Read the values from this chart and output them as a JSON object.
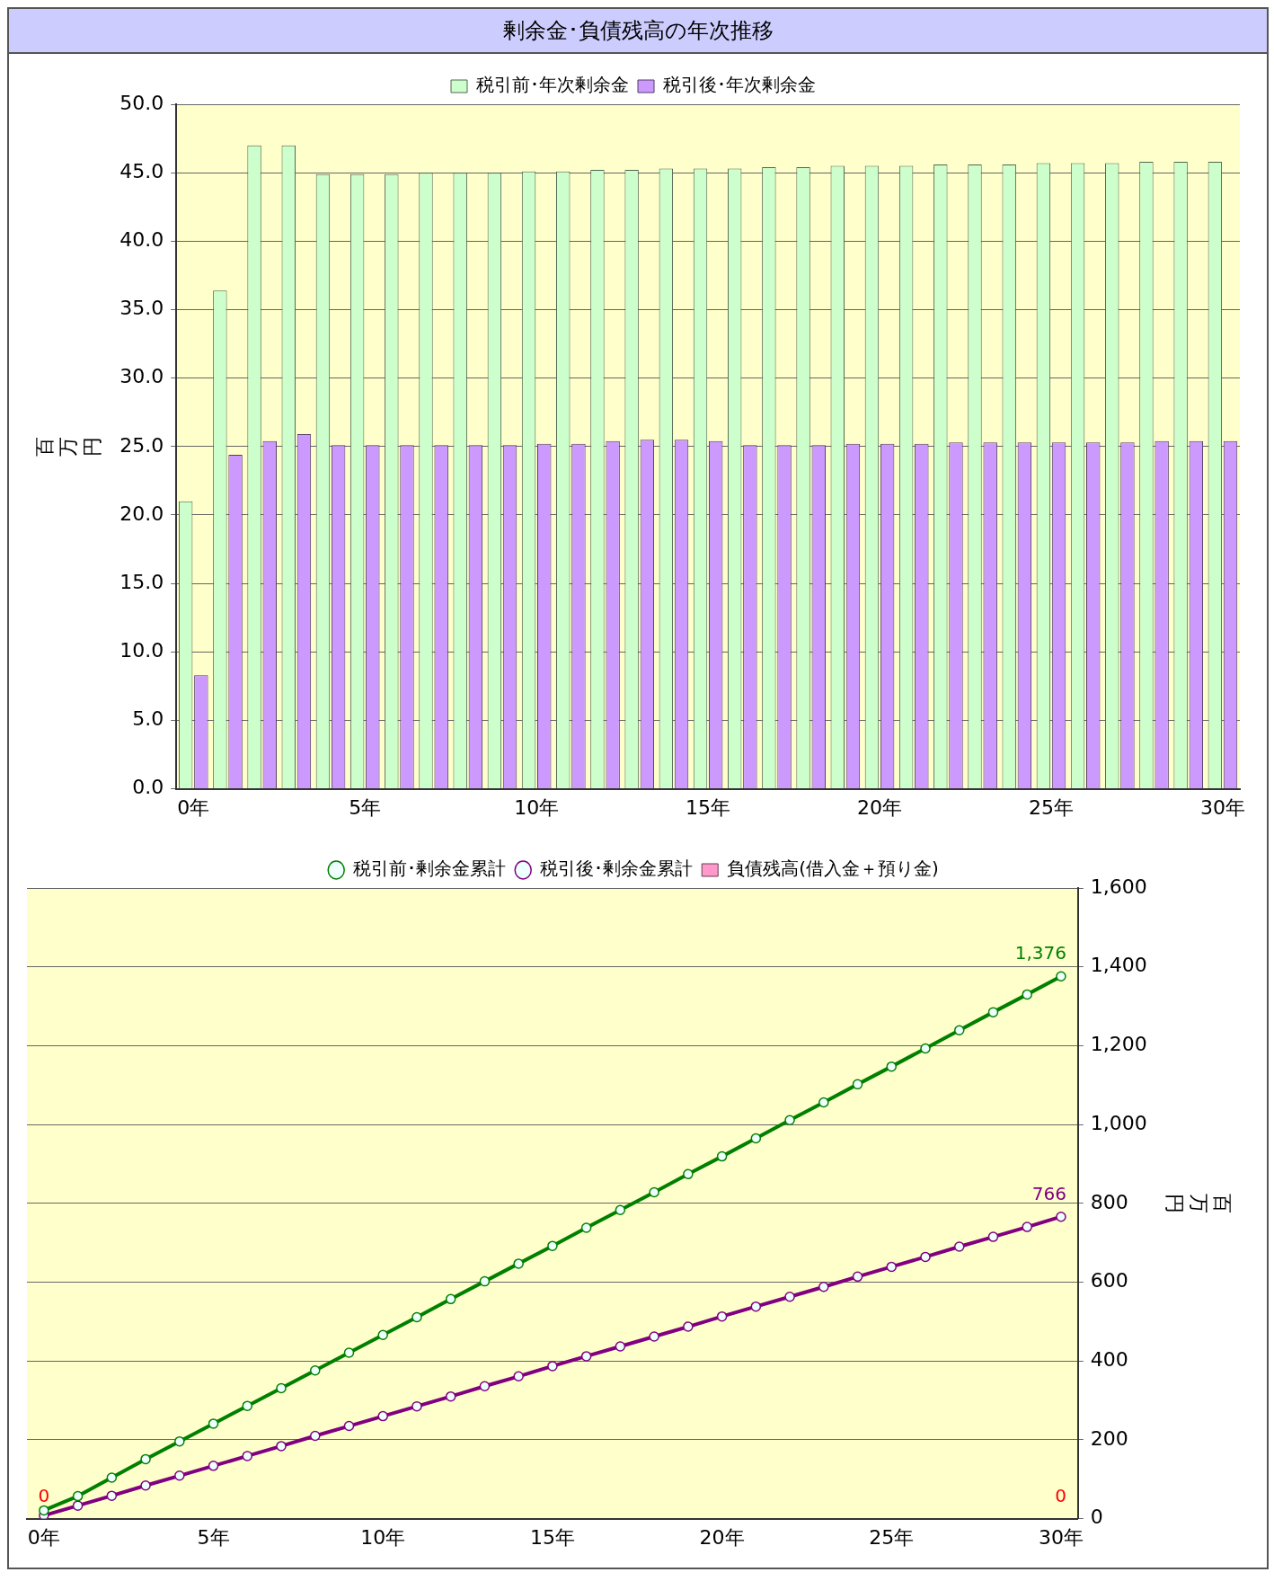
{
  "chart_data": [
    {
      "type": "bar",
      "title": "剰余金･負債残高の年次推移",
      "ylabel": "百万円",
      "categories": [
        "0年",
        null,
        null,
        null,
        null,
        "5年",
        null,
        null,
        null,
        null,
        "10年",
        null,
        null,
        null,
        null,
        "15年",
        null,
        null,
        null,
        null,
        "20年",
        null,
        null,
        null,
        null,
        "25年",
        null,
        null,
        null,
        null,
        "30年"
      ],
      "series": [
        {
          "name": "税引前･年次剰余金",
          "color": "#ccffcc",
          "values": [
            21.0,
            36.4,
            47.0,
            47.0,
            44.9,
            44.9,
            44.9,
            45.0,
            45.0,
            45.0,
            45.1,
            45.1,
            45.2,
            45.2,
            45.3,
            45.3,
            45.3,
            45.4,
            45.4,
            45.5,
            45.5,
            45.5,
            45.6,
            45.6,
            45.6,
            45.7,
            45.7,
            45.7,
            45.8,
            45.8,
            45.8
          ]
        },
        {
          "name": "税引後･年次剰余金",
          "color": "#cc99ff",
          "values": [
            8.3,
            24.4,
            25.4,
            25.9,
            25.1,
            25.1,
            25.1,
            25.1,
            25.1,
            25.1,
            25.2,
            25.2,
            25.4,
            25.5,
            25.5,
            25.4,
            25.1,
            25.1,
            25.1,
            25.2,
            25.2,
            25.2,
            25.3,
            25.3,
            25.3,
            25.3,
            25.3,
            25.3,
            25.4,
            25.4,
            25.4
          ]
        }
      ],
      "ylim": [
        0,
        50
      ],
      "yticks": [
        {
          "value": 0,
          "label": "0.0"
        },
        {
          "value": 5,
          "label": "5.0"
        },
        {
          "value": 10,
          "label": "10.0"
        },
        {
          "value": 15,
          "label": "15.0"
        },
        {
          "value": 20,
          "label": "20.0"
        },
        {
          "value": 25,
          "label": "25.0"
        },
        {
          "value": 30,
          "label": "30.0"
        },
        {
          "value": 35,
          "label": "35.0"
        },
        {
          "value": 40,
          "label": "40.0"
        },
        {
          "value": 45,
          "label": "45.0"
        },
        {
          "value": 50,
          "label": "50.0"
        }
      ],
      "grid": "y",
      "legend": "top"
    },
    {
      "type": "line",
      "y2label": "百万円",
      "marker": "circle",
      "categories": [
        "0年",
        null,
        null,
        null,
        null,
        "5年",
        null,
        null,
        null,
        null,
        "10年",
        null,
        null,
        null,
        null,
        "15年",
        null,
        null,
        null,
        null,
        "20年",
        null,
        null,
        null,
        null,
        "25年",
        null,
        null,
        null,
        null,
        "30年"
      ],
      "series": [
        {
          "name": "負債残高(借入金＋預り金)",
          "type": "bar",
          "axis": "y2",
          "color": "#ff99cc",
          "values": [
            0,
            0,
            0,
            0,
            0,
            0,
            0,
            0,
            0,
            0,
            0,
            0,
            0,
            0,
            0,
            0,
            0,
            0,
            0,
            0,
            0,
            0,
            0,
            0,
            0,
            0,
            0,
            0,
            0,
            0,
            0
          ],
          "value_labels": [
            "0",
            null,
            null,
            null,
            null,
            null,
            null,
            null,
            null,
            null,
            null,
            null,
            null,
            null,
            null,
            null,
            null,
            null,
            null,
            null,
            null,
            null,
            null,
            null,
            null,
            null,
            null,
            null,
            null,
            null,
            "0"
          ]
        },
        {
          "name": "税引前･剰余金累計",
          "axis": "y2",
          "color": "#008000",
          "values": [
            21,
            57,
            104,
            151,
            196,
            241,
            286,
            331,
            376,
            421,
            466,
            511,
            557,
            602,
            647,
            692,
            738,
            783,
            828,
            874,
            919,
            965,
            1011,
            1056,
            1102,
            1147,
            1193,
            1239,
            1285,
            1330,
            1376
          ],
          "value_labels": [
            null,
            null,
            null,
            null,
            null,
            null,
            null,
            null,
            null,
            null,
            null,
            null,
            null,
            null,
            null,
            null,
            null,
            null,
            null,
            null,
            null,
            null,
            null,
            null,
            null,
            null,
            null,
            null,
            null,
            null,
            "1,376"
          ]
        },
        {
          "name": "税引後･剰余金累計",
          "axis": "y2",
          "color": "#800080",
          "values": [
            8,
            33,
            58,
            84,
            109,
            134,
            159,
            184,
            210,
            235,
            260,
            285,
            310,
            336,
            361,
            387,
            412,
            437,
            462,
            487,
            513,
            538,
            563,
            588,
            614,
            639,
            664,
            690,
            715,
            740,
            766
          ],
          "value_labels": [
            null,
            null,
            null,
            null,
            null,
            null,
            null,
            null,
            null,
            null,
            null,
            null,
            null,
            null,
            null,
            null,
            null,
            null,
            null,
            null,
            null,
            null,
            null,
            null,
            null,
            null,
            null,
            null,
            null,
            null,
            "766"
          ]
        }
      ],
      "y2lim": [
        0,
        1600
      ],
      "y2ticks": [
        0,
        200,
        400,
        600,
        800,
        {
          "value": 1000,
          "label": "1,000"
        },
        {
          "value": 1200,
          "label": "1,200"
        },
        {
          "value": 1400,
          "label": "1,400"
        },
        {
          "value": 1600,
          "label": "1,600"
        }
      ],
      "grid": "y",
      "legend": "top"
    }
  ]
}
